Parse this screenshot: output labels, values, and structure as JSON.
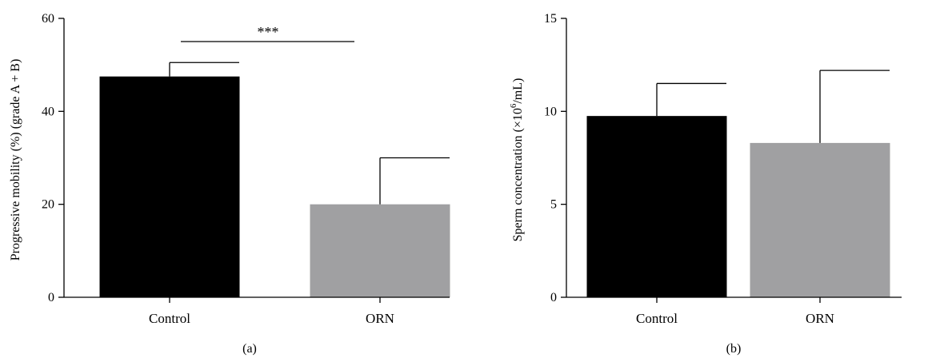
{
  "chart_data": [
    {
      "panel": "(a)",
      "type": "bar",
      "categories": [
        "Control",
        "ORN"
      ],
      "values": [
        47.5,
        20.0
      ],
      "error": [
        3.0,
        10.0
      ],
      "colors": [
        "#000000",
        "#a0a0a2"
      ],
      "ylabel_text": "Progressive mobility (%) (grade A + B)",
      "ylim": [
        0,
        60
      ],
      "yticks": [
        "0",
        "20",
        "40",
        "60"
      ],
      "significance": {
        "label": "***",
        "from": "Control",
        "to": "ORN"
      },
      "grid": false
    },
    {
      "panel": "(b)",
      "type": "bar",
      "categories": [
        "Control",
        "ORN"
      ],
      "values": [
        9.75,
        8.3
      ],
      "error": [
        1.75,
        3.9
      ],
      "colors": [
        "#000000",
        "#a0a0a2"
      ],
      "ylabel_prefix": "Sperm concentration (×10",
      "ylabel_sup": "6",
      "ylabel_suffix": "/mL)",
      "ylim": [
        0,
        15
      ],
      "yticks": [
        "0",
        "5",
        "10",
        "15"
      ],
      "grid": false
    }
  ]
}
